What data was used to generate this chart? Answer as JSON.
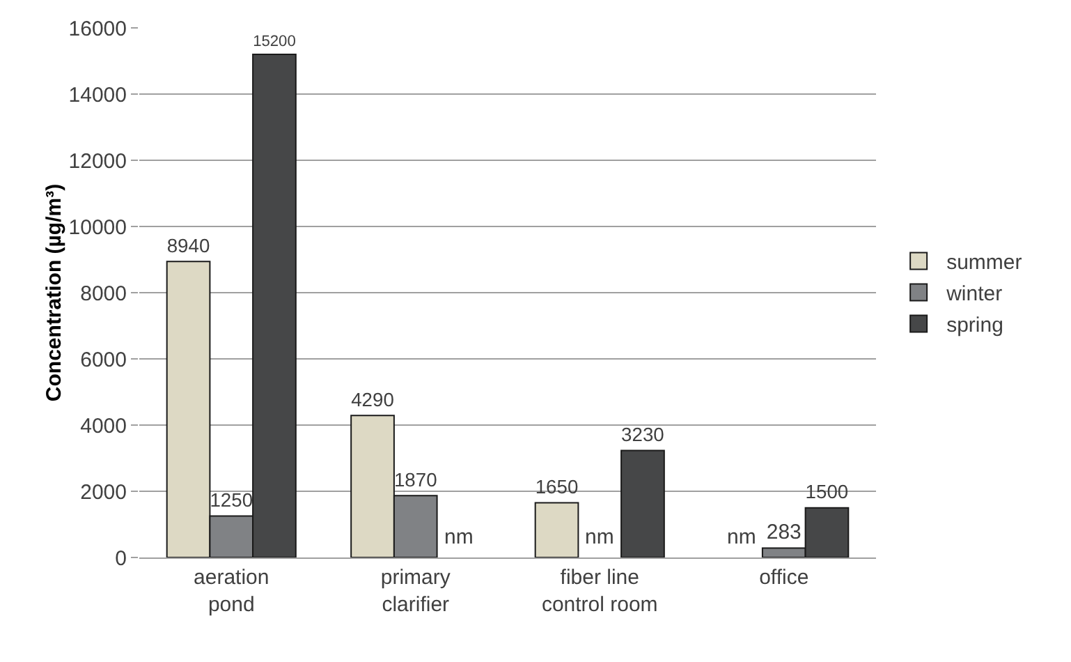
{
  "chart_data": {
    "type": "bar",
    "ylabel": "Concentration (µg/m³)",
    "categories": [
      "aeration pond",
      "primary clarifier",
      "fiber line control room",
      "office"
    ],
    "series": [
      {
        "name": "summer",
        "color": "#ddd9c4",
        "values": [
          8940,
          4290,
          1650,
          null
        ],
        "value_labels": [
          "8940",
          "4290",
          "1650",
          "nm"
        ]
      },
      {
        "name": "winter",
        "color": "#808285",
        "values": [
          1250,
          1870,
          null,
          283
        ],
        "value_labels": [
          "1250",
          "1870",
          "nm",
          "283"
        ]
      },
      {
        "name": "spring",
        "color": "#464748",
        "values": [
          15200,
          null,
          3230,
          1500
        ],
        "value_labels": [
          "15200",
          "nm",
          "3230",
          "1500"
        ]
      }
    ],
    "ylim": [
      0,
      16000
    ],
    "yticks": [
      0,
      2000,
      4000,
      6000,
      8000,
      10000,
      12000,
      14000,
      16000
    ],
    "grid": "y",
    "legend": "right"
  }
}
